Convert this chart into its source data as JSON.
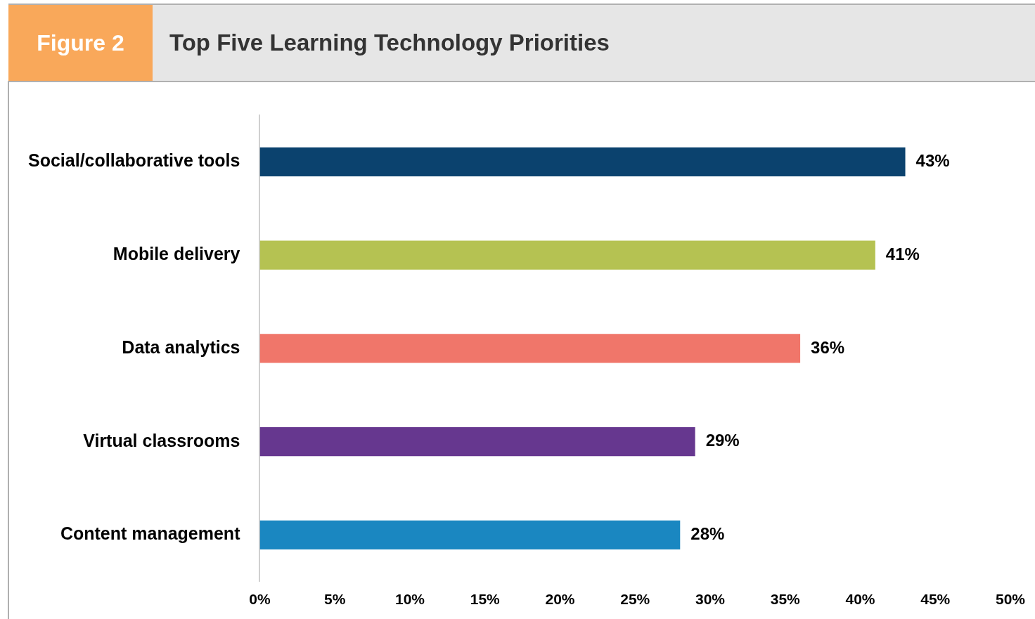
{
  "chart_data": {
    "type": "bar",
    "orientation": "horizontal",
    "title": "Top Five Learning Technology Priorities",
    "annotations": [
      "Figure 2"
    ],
    "categories": [
      "Social/collaborative tools",
      "Mobile delivery",
      "Data analytics",
      "Virtual classrooms",
      "Content management"
    ],
    "values": [
      43,
      41,
      36,
      29,
      28
    ],
    "colors": [
      "#0b426e",
      "#b5c252",
      "#f0766a",
      "#66378f",
      "#1a87c1"
    ],
    "value_labels": [
      "43%",
      "41%",
      "36%",
      "29%",
      "28%"
    ],
    "xlim": [
      0,
      50
    ],
    "xticks": [
      {
        "value": 0,
        "label": "0%"
      },
      {
        "value": 5,
        "label": "5%"
      },
      {
        "value": 10,
        "label": "10%"
      },
      {
        "value": 15,
        "label": "15%"
      },
      {
        "value": 20,
        "label": "20%"
      },
      {
        "value": 25,
        "label": "25%"
      },
      {
        "value": 30,
        "label": "30%"
      },
      {
        "value": 35,
        "label": "35%"
      },
      {
        "value": 40,
        "label": "40%"
      },
      {
        "value": 45,
        "label": "45%"
      },
      {
        "value": 50,
        "label": "50%"
      }
    ],
    "grid": false,
    "legend": false
  }
}
